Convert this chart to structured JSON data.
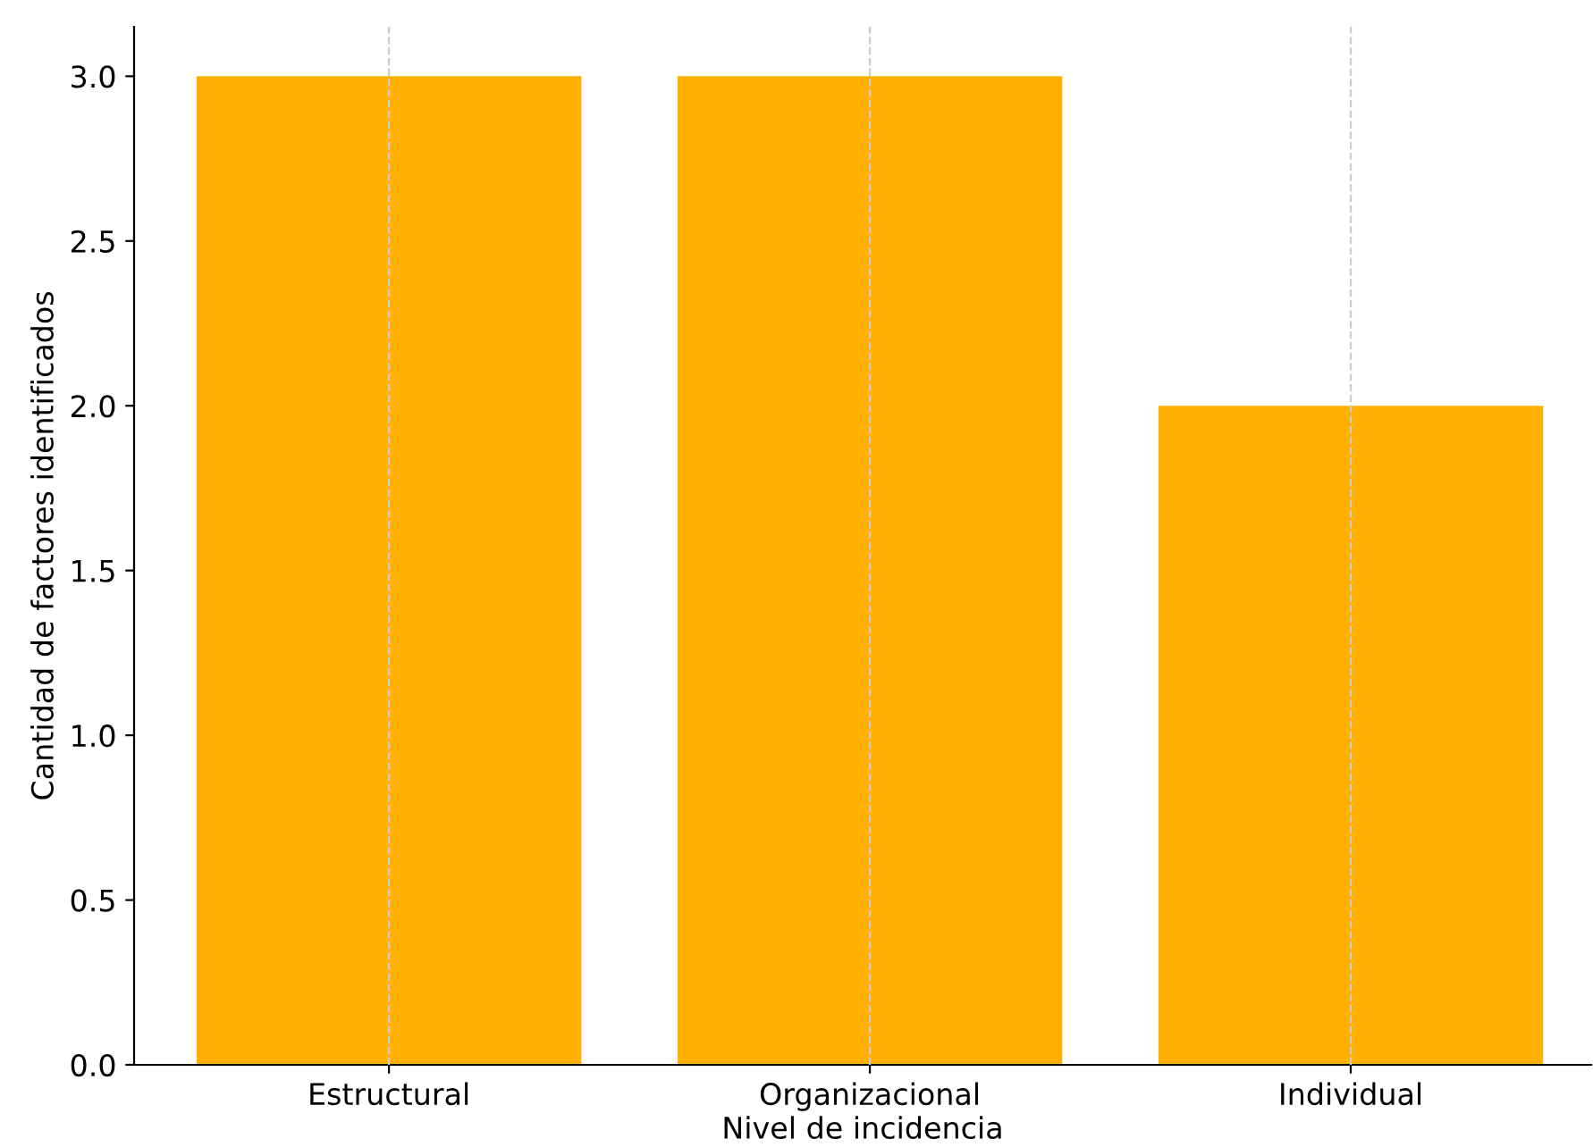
{
  "chart_data": {
    "type": "bar",
    "xlabel": "Nivel de incidencia",
    "ylabel": "Cantidad de factores identificados",
    "categories": [
      "Estructural",
      "Organizacional",
      "Individual"
    ],
    "values": [
      3,
      3,
      2
    ],
    "color": "#ffb000",
    "ylim": [
      0,
      3.15
    ],
    "yticks": [
      {
        "value": 0,
        "label": "0.0"
      },
      {
        "value": 0.5,
        "label": "0.5"
      },
      {
        "value": 1,
        "label": "1.0"
      },
      {
        "value": 1.5,
        "label": "1.5"
      },
      {
        "value": 2,
        "label": "2.0"
      },
      {
        "value": 2.5,
        "label": "2.5"
      },
      {
        "value": 3,
        "label": "3.0"
      }
    ],
    "grid": "x"
  }
}
